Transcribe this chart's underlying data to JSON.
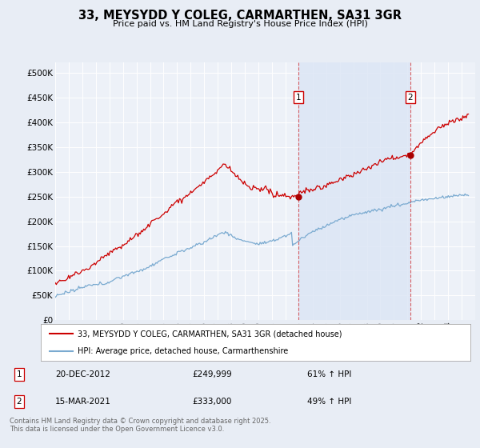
{
  "title": "33, MEYSYDD Y COLEG, CARMARTHEN, SA31 3GR",
  "subtitle": "Price paid vs. HM Land Registry's House Price Index (HPI)",
  "bg_color": "#e8edf5",
  "plot_bg_color": "#edf1f8",
  "grid_color": "#ffffff",
  "highlight_color": "#dce6f5",
  "ylim": [
    0,
    520000
  ],
  "yticks": [
    0,
    50000,
    100000,
    150000,
    200000,
    250000,
    300000,
    350000,
    400000,
    450000,
    500000
  ],
  "xlim_start": 1995.0,
  "xlim_end": 2026.0,
  "legend_label_red": "33, MEYSYDD Y COLEG, CARMARTHEN, SA31 3GR (detached house)",
  "legend_label_blue": "HPI: Average price, detached house, Carmarthenshire",
  "annotation1_label": "1",
  "annotation1_date": "20-DEC-2012",
  "annotation1_price": "£249,999",
  "annotation1_hpi": "61% ↑ HPI",
  "annotation1_year": 2012.96,
  "annotation1_value": 249999,
  "annotation1_hpi_value": 155000,
  "annotation2_label": "2",
  "annotation2_date": "15-MAR-2021",
  "annotation2_price": "£333,000",
  "annotation2_hpi": "49% ↑ HPI",
  "annotation2_year": 2021.21,
  "annotation2_value": 333000,
  "annotation2_hpi_value": 224000,
  "footer": "Contains HM Land Registry data © Crown copyright and database right 2025.\nThis data is licensed under the Open Government Licence v3.0.",
  "red_color": "#cc0000",
  "blue_color": "#7aaad0",
  "dot_color": "#aa0000"
}
